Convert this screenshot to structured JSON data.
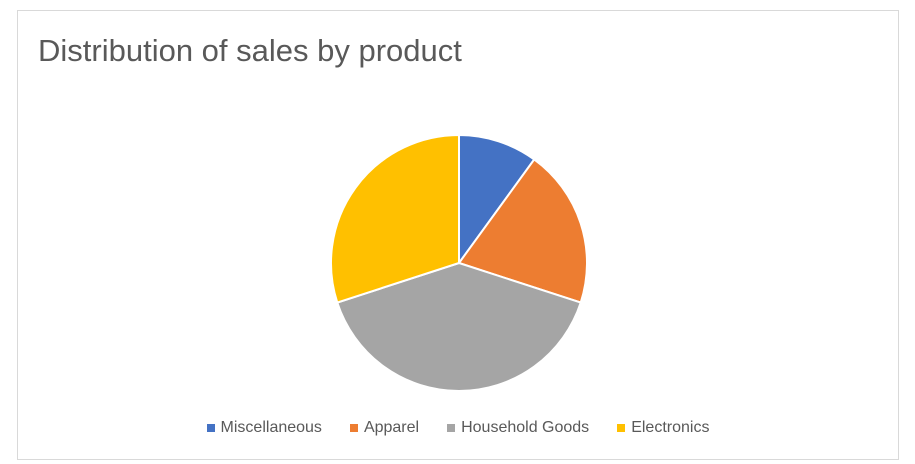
{
  "chart_data": {
    "type": "pie",
    "title": "Distribution of sales by product",
    "categories": [
      "Miscellaneous",
      "Apparel",
      "Household Goods",
      "Electronics"
    ],
    "values": [
      10,
      20,
      40,
      30
    ],
    "colors": [
      "#4472C4",
      "#ED7D31",
      "#A5A5A5",
      "#FFC000"
    ],
    "legend": "bottom"
  }
}
